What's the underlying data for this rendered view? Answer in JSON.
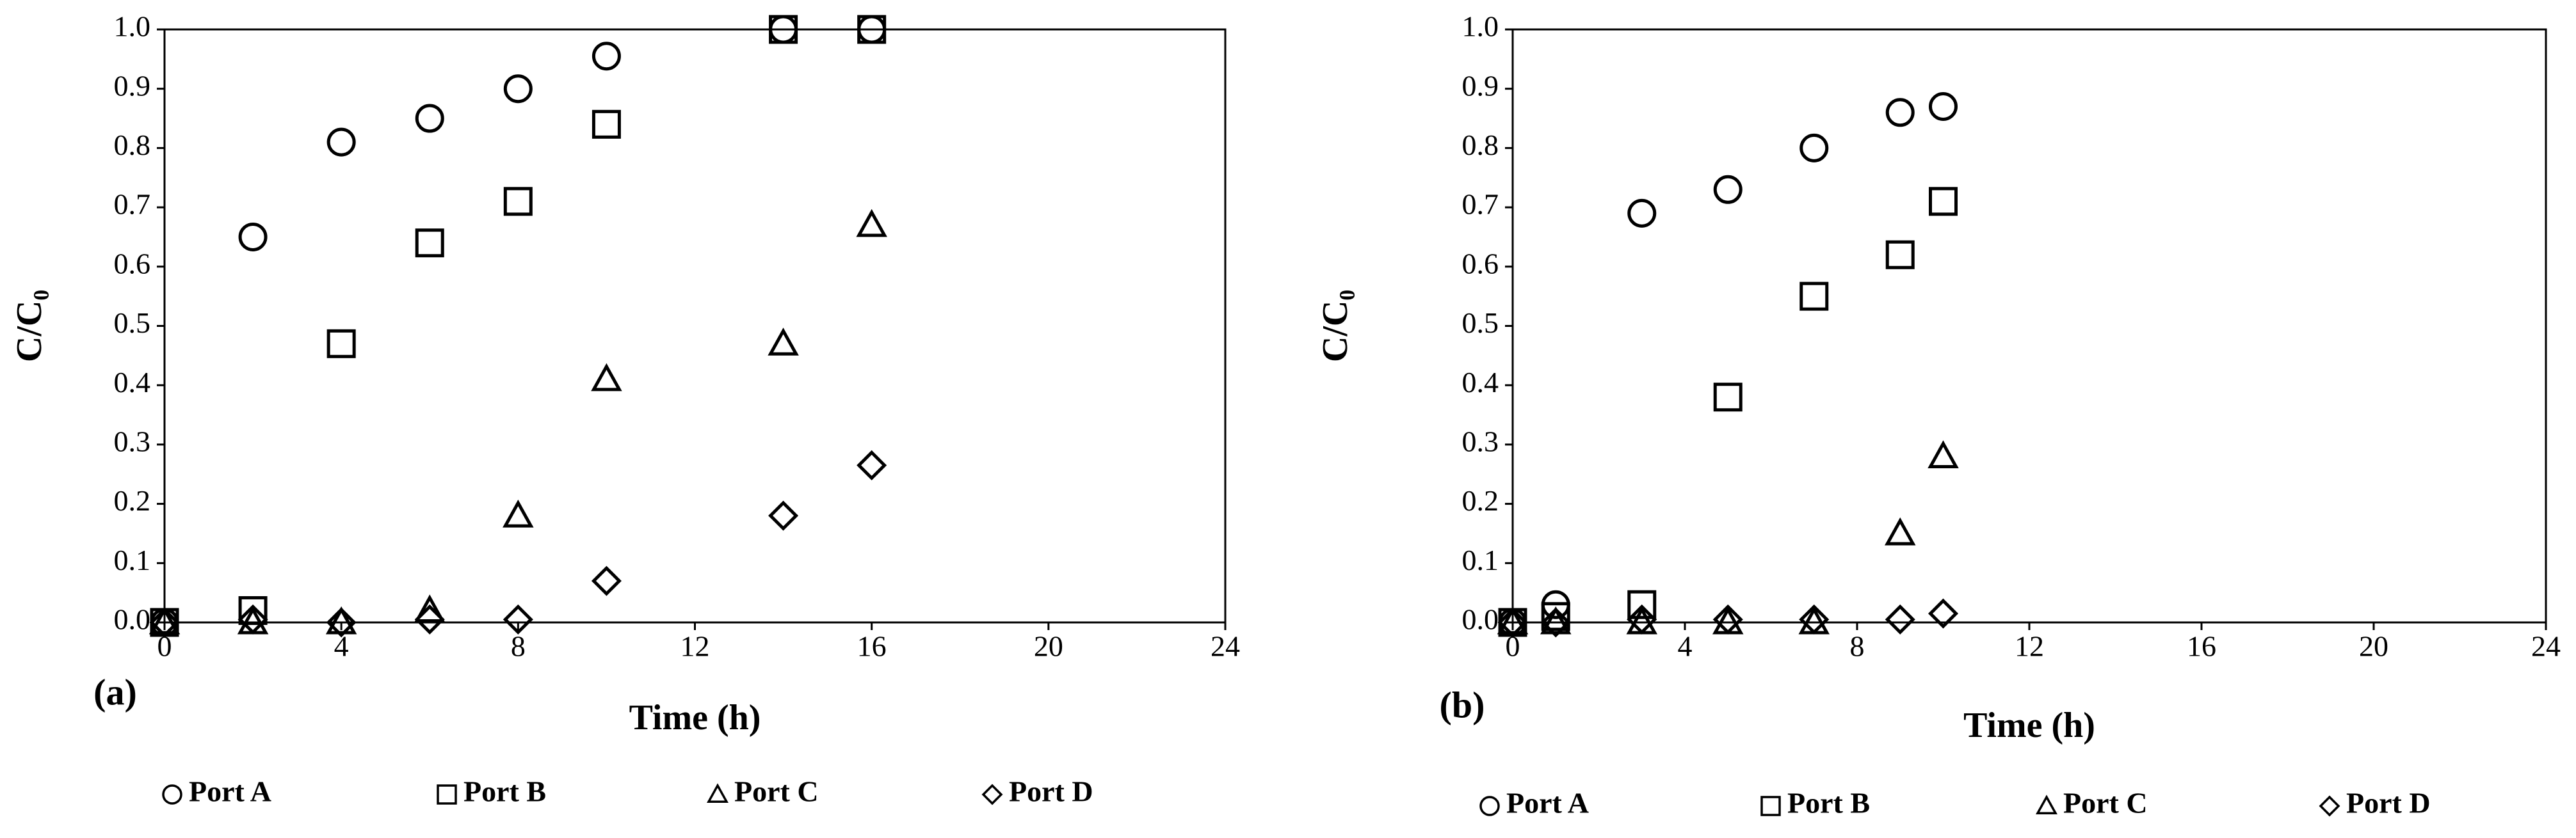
{
  "chart_data": [
    {
      "type": "scatter",
      "panel_label": "(a)",
      "xlabel": "Time (h)",
      "ylabel": "C/C₀",
      "xlim": [
        0,
        24
      ],
      "xticks": [
        0,
        4,
        8,
        12,
        16,
        20,
        24
      ],
      "ylim": [
        0,
        1
      ],
      "yticks": [
        {
          "value": 0,
          "label": "0.0"
        },
        0.1,
        0.2,
        0.3,
        0.4,
        0.5,
        0.6,
        0.7,
        0.8,
        0.9,
        {
          "value": 1,
          "label": "1.0"
        }
      ],
      "x": [
        0,
        2,
        4,
        6,
        8,
        10,
        14,
        16
      ],
      "series": [
        {
          "name": "Port A",
          "marker": "circle",
          "color": "#000000",
          "values": [
            0,
            0.65,
            0.81,
            0.85,
            0.9,
            0.955,
            1.0,
            1.0
          ]
        },
        {
          "name": "Port B",
          "marker": "square",
          "color": "#000000",
          "values": [
            0,
            0.02,
            0.47,
            0.64,
            0.71,
            0.84,
            1.0,
            1.0
          ]
        },
        {
          "name": "Port C",
          "marker": "triangle",
          "color": "#000000",
          "values": [
            0,
            0,
            0,
            0.02,
            0.18,
            0.41,
            0.47,
            0.67
          ]
        },
        {
          "name": "Port D",
          "marker": "diamond",
          "color": "#000000",
          "values": [
            0,
            0.005,
            0,
            0.005,
            0.005,
            0.07,
            0.18,
            0.265
          ]
        }
      ]
    },
    {
      "type": "scatter",
      "panel_label": "(b)",
      "xlabel": "Time (h)",
      "ylabel": "C/C₀",
      "xlim": [
        0,
        24
      ],
      "xticks": [
        0,
        4,
        8,
        12,
        16,
        20,
        24
      ],
      "ylim": [
        0,
        1
      ],
      "yticks": [
        {
          "value": 0,
          "label": "0.0"
        },
        0.1,
        0.2,
        0.3,
        0.4,
        0.5,
        0.6,
        0.7,
        0.8,
        0.9,
        {
          "value": 1,
          "label": "1.0"
        }
      ],
      "x": [
        0,
        1,
        3,
        5,
        7,
        9,
        10
      ],
      "series": [
        {
          "name": "Port A",
          "marker": "circle",
          "color": "#000000",
          "values": [
            0,
            0.03,
            0.69,
            0.73,
            0.8,
            0.86,
            0.87
          ]
        },
        {
          "name": "Port B",
          "marker": "square",
          "color": "#000000",
          "values": [
            0,
            0.01,
            0.03,
            0.38,
            0.55,
            0.62,
            0.71
          ]
        },
        {
          "name": "Port C",
          "marker": "triangle",
          "color": "#000000",
          "values": [
            0,
            0,
            0,
            0,
            0,
            0.15,
            0.28
          ]
        },
        {
          "name": "Port D",
          "marker": "diamond",
          "color": "#000000",
          "values": [
            0,
            0,
            0.005,
            0.005,
            0.005,
            0.005,
            0.015
          ]
        }
      ]
    }
  ]
}
